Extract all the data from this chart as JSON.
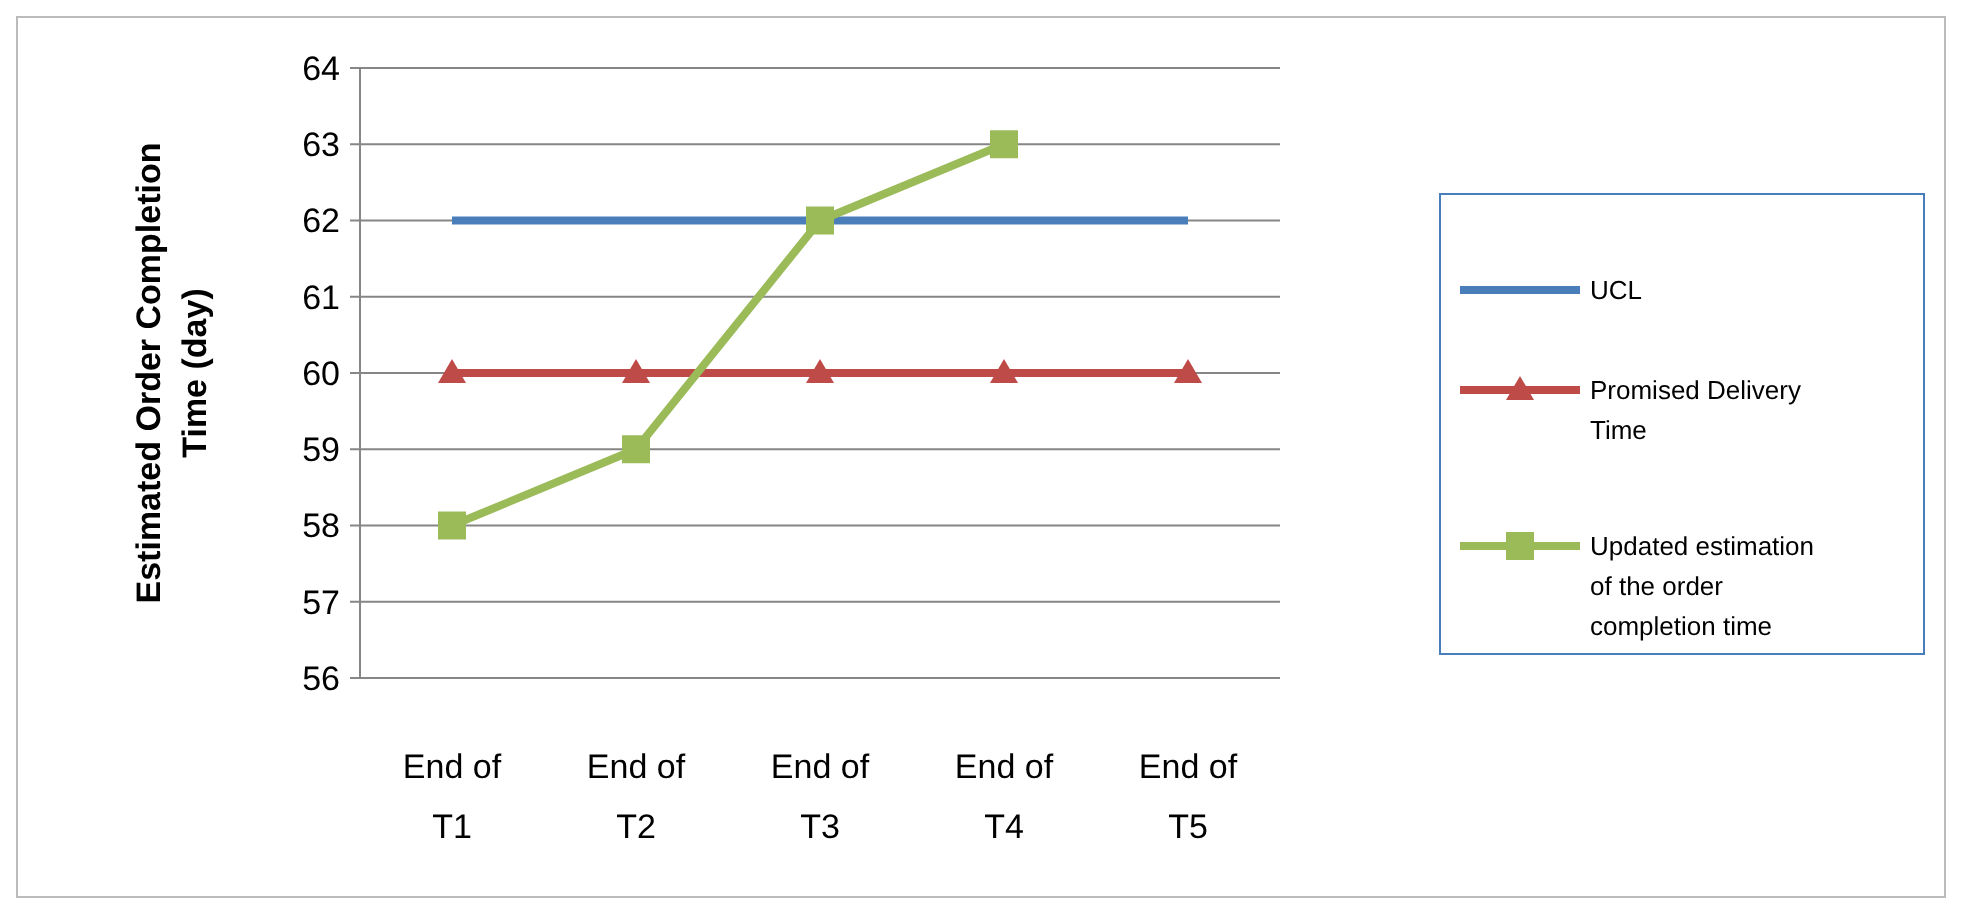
{
  "chart_data": {
    "type": "line",
    "ylabel": "Estimated Order Completion Time (day)",
    "categories": [
      "End of T1",
      "End of T2",
      "End of T3",
      "End of T4",
      "End of T5"
    ],
    "ylim": [
      56,
      64
    ],
    "yticks": [
      56,
      57,
      58,
      59,
      60,
      61,
      62,
      63,
      64
    ],
    "grid": "y",
    "legend": "right",
    "series": [
      {
        "name": "UCL",
        "color": "#4a7ebb",
        "marker": "none",
        "values": [
          62,
          62,
          62,
          62,
          62
        ]
      },
      {
        "name": "Promised Delivery Time",
        "color": "#be4b48",
        "marker": "triangle",
        "values": [
          60,
          60,
          60,
          60,
          60
        ]
      },
      {
        "name": "Updated estimation of the order completion time",
        "color": "#9bbb59",
        "marker": "square",
        "values": [
          58,
          59,
          62,
          63,
          null
        ]
      }
    ]
  }
}
